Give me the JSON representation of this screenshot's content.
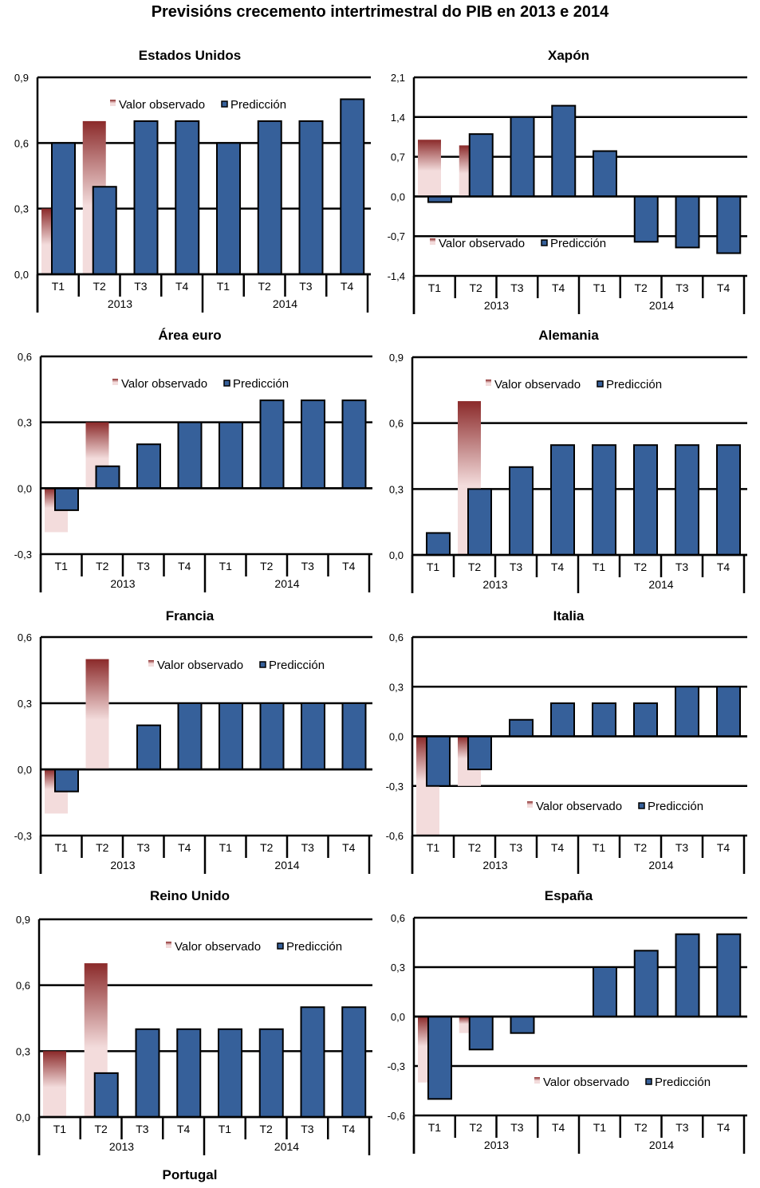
{
  "page": {
    "title": "Previsións crecemento intertrimestral do PIB en 2013 e 2014",
    "bottom_title": "Portugal"
  },
  "colors": {
    "prediction": "#36609A",
    "observed_dark": "#8B2A2A",
    "observed_light": "#F3DCDC"
  },
  "chart_data": [
    {
      "type": "bar",
      "title": "Estados Unidos",
      "categories": [
        "T1",
        "T2",
        "T3",
        "T4",
        "T1",
        "T2",
        "T3",
        "T4"
      ],
      "years": [
        "2013",
        "2014"
      ],
      "ylim": [
        0.0,
        0.9
      ],
      "yticks": [
        "0,0",
        "0,3",
        "0,6",
        "0,9"
      ],
      "legend_position": "top",
      "series": [
        {
          "name": "Valor observado",
          "values": [
            0.3,
            0.7,
            null,
            null,
            null,
            null,
            null,
            null
          ]
        },
        {
          "name": "Predicción",
          "values": [
            0.6,
            0.4,
            0.7,
            0.7,
            0.6,
            0.7,
            0.7,
            0.8
          ]
        }
      ]
    },
    {
      "type": "bar",
      "title": "Xapón",
      "categories": [
        "T1",
        "T2",
        "T3",
        "T4",
        "T1",
        "T2",
        "T3",
        "T4"
      ],
      "years": [
        "2013",
        "2014"
      ],
      "ylim": [
        -1.4,
        2.1
      ],
      "yticks": [
        "-1,4",
        "-0,7",
        "0,0",
        "0,7",
        "1,4",
        "2,1"
      ],
      "legend_position": "bottom",
      "series": [
        {
          "name": "Valor observado",
          "values": [
            1.0,
            0.9,
            null,
            null,
            null,
            null,
            null,
            null
          ]
        },
        {
          "name": "Predicción",
          "values": [
            -0.1,
            1.1,
            1.4,
            1.6,
            0.8,
            -0.8,
            -0.9,
            -1.0
          ]
        }
      ]
    },
    {
      "type": "bar",
      "title": "Área euro",
      "categories": [
        "T1",
        "T2",
        "T3",
        "T4",
        "T1",
        "T2",
        "T3",
        "T4"
      ],
      "years": [
        "2013",
        "2014"
      ],
      "ylim": [
        -0.3,
        0.6
      ],
      "yticks": [
        "-0,3",
        "0,0",
        "0,3",
        "0,6"
      ],
      "legend_position": "top",
      "series": [
        {
          "name": "Valor observado",
          "values": [
            -0.2,
            0.3,
            null,
            null,
            null,
            null,
            null,
            null
          ]
        },
        {
          "name": "Predicción",
          "values": [
            -0.1,
            0.1,
            0.2,
            0.3,
            0.3,
            0.4,
            0.4,
            0.4
          ]
        }
      ]
    },
    {
      "type": "bar",
      "title": "Alemania",
      "categories": [
        "T1",
        "T2",
        "T3",
        "T4",
        "T1",
        "T2",
        "T3",
        "T4"
      ],
      "years": [
        "2013",
        "2014"
      ],
      "ylim": [
        0.0,
        0.9
      ],
      "yticks": [
        "0,0",
        "0,3",
        "0,6",
        "0,9"
      ],
      "legend_position": "top",
      "series": [
        {
          "name": "Valor observado",
          "values": [
            0.0,
            0.7,
            null,
            null,
            null,
            null,
            null,
            null
          ]
        },
        {
          "name": "Predicción",
          "values": [
            0.1,
            0.3,
            0.4,
            0.5,
            0.5,
            0.5,
            0.5,
            0.5
          ]
        }
      ]
    },
    {
      "type": "bar",
      "title": "Francia",
      "categories": [
        "T1",
        "T2",
        "T3",
        "T4",
        "T1",
        "T2",
        "T3",
        "T4"
      ],
      "years": [
        "2013",
        "2014"
      ],
      "ylim": [
        -0.3,
        0.6
      ],
      "yticks": [
        "-0,3",
        "0,0",
        "0,3",
        "0,6"
      ],
      "legend_position": "top",
      "series": [
        {
          "name": "Valor observado",
          "values": [
            -0.2,
            0.5,
            null,
            null,
            null,
            null,
            null,
            null
          ]
        },
        {
          "name": "Predicción",
          "values": [
            -0.1,
            0.0,
            0.2,
            0.3,
            0.3,
            0.3,
            0.3,
            0.3
          ]
        }
      ]
    },
    {
      "type": "bar",
      "title": "Italia",
      "categories": [
        "T1",
        "T2",
        "T3",
        "T4",
        "T1",
        "T2",
        "T3",
        "T4"
      ],
      "years": [
        "2013",
        "2014"
      ],
      "ylim": [
        -0.6,
        0.6
      ],
      "yticks": [
        "-0,6",
        "-0,3",
        "0,0",
        "0,3",
        "0,6"
      ],
      "legend_position": "bottom",
      "series": [
        {
          "name": "Valor observado",
          "values": [
            -0.6,
            -0.3,
            null,
            null,
            null,
            null,
            null,
            null
          ]
        },
        {
          "name": "Predicción",
          "values": [
            -0.3,
            -0.2,
            0.1,
            0.2,
            0.2,
            0.2,
            0.3,
            0.3
          ]
        }
      ]
    },
    {
      "type": "bar",
      "title": "Reino Unido",
      "categories": [
        "T1",
        "T2",
        "T3",
        "T4",
        "T1",
        "T2",
        "T3",
        "T4"
      ],
      "years": [
        "2013",
        "2014"
      ],
      "ylim": [
        0.0,
        0.9
      ],
      "yticks": [
        "0,0",
        "0,3",
        "0,6",
        "0,9"
      ],
      "legend_position": "top",
      "series": [
        {
          "name": "Valor observado",
          "values": [
            0.3,
            0.7,
            null,
            null,
            null,
            null,
            null,
            null
          ]
        },
        {
          "name": "Predicción",
          "values": [
            0.0,
            0.2,
            0.4,
            0.4,
            0.4,
            0.4,
            0.5,
            0.5
          ]
        }
      ]
    },
    {
      "type": "bar",
      "title": "España",
      "categories": [
        "T1",
        "T2",
        "T3",
        "T4",
        "T1",
        "T2",
        "T3",
        "T4"
      ],
      "years": [
        "2013",
        "2014"
      ],
      "ylim": [
        -0.6,
        0.6
      ],
      "yticks": [
        "-0,6",
        "-0,3",
        "0,0",
        "0,3",
        "0,6"
      ],
      "legend_position": "bottom",
      "series": [
        {
          "name": "Valor observado",
          "values": [
            -0.4,
            -0.1,
            null,
            null,
            null,
            null,
            null,
            null
          ]
        },
        {
          "name": "Predicción",
          "values": [
            -0.5,
            -0.2,
            -0.1,
            0.0,
            0.3,
            0.4,
            0.5,
            0.5
          ]
        }
      ]
    }
  ]
}
